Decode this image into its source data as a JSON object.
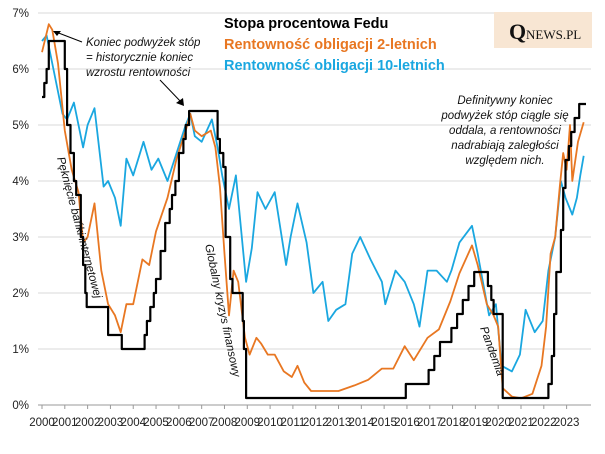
{
  "chart_data": {
    "type": "line",
    "title": "Stopa procentowa Fedu",
    "xlabel": "",
    "ylabel": "",
    "xlim": [
      2000,
      2023.85
    ],
    "ylim": [
      0,
      7
    ],
    "x_ticks": [
      "2000",
      "2001",
      "2002",
      "2003",
      "2004",
      "2005",
      "2006",
      "2007",
      "2008",
      "2009",
      "2010",
      "2011",
      "2012",
      "2013",
      "2014",
      "2015",
      "2016",
      "2017",
      "2018",
      "2019",
      "2020",
      "2021",
      "2022",
      "2023"
    ],
    "y_ticks": [
      "0%",
      "1%",
      "2%",
      "3%",
      "4%",
      "5%",
      "6%",
      "7%"
    ],
    "grid": "horizontal",
    "legend": {
      "placement": "top-center",
      "entries": [
        {
          "label": "Stopa procentowa Fedu",
          "color": "#000000"
        },
        {
          "label": "Rentowność obligacji  2-letnich",
          "color": "#e87722"
        },
        {
          "label": "Rentowność obligacji  10-letnich",
          "color": "#1aa7e0"
        }
      ]
    },
    "series": [
      {
        "name": "Stopa procentowa Fedu",
        "color": "#000000",
        "step": true,
        "points": [
          [
            2000.0,
            5.5
          ],
          [
            2000.1,
            5.75
          ],
          [
            2000.2,
            6.0
          ],
          [
            2000.3,
            6.5
          ],
          [
            2001.0,
            6.0
          ],
          [
            2001.1,
            5.0
          ],
          [
            2001.25,
            4.5
          ],
          [
            2001.4,
            4.0
          ],
          [
            2001.5,
            3.75
          ],
          [
            2001.7,
            3.0
          ],
          [
            2001.8,
            2.5
          ],
          [
            2001.9,
            2.0
          ],
          [
            2001.96,
            1.75
          ],
          [
            2002.9,
            1.25
          ],
          [
            2003.5,
            1.0
          ],
          [
            2004.5,
            1.25
          ],
          [
            2004.6,
            1.5
          ],
          [
            2004.75,
            1.75
          ],
          [
            2004.9,
            2.0
          ],
          [
            2005.0,
            2.25
          ],
          [
            2005.2,
            2.75
          ],
          [
            2005.4,
            3.25
          ],
          [
            2005.6,
            3.5
          ],
          [
            2005.7,
            3.75
          ],
          [
            2005.85,
            4.0
          ],
          [
            2006.0,
            4.5
          ],
          [
            2006.2,
            4.75
          ],
          [
            2006.3,
            5.0
          ],
          [
            2006.45,
            5.25
          ],
          [
            2007.7,
            4.75
          ],
          [
            2007.8,
            4.5
          ],
          [
            2007.95,
            4.25
          ],
          [
            2008.05,
            3.0
          ],
          [
            2008.25,
            2.25
          ],
          [
            2008.35,
            2.0
          ],
          [
            2008.8,
            1.5
          ],
          [
            2008.85,
            1.0
          ],
          [
            2008.95,
            0.125
          ],
          [
            2015.95,
            0.375
          ],
          [
            2016.95,
            0.625
          ],
          [
            2017.2,
            0.875
          ],
          [
            2017.45,
            1.125
          ],
          [
            2017.95,
            1.375
          ],
          [
            2018.2,
            1.625
          ],
          [
            2018.45,
            1.875
          ],
          [
            2018.7,
            2.125
          ],
          [
            2018.95,
            2.375
          ],
          [
            2019.55,
            2.125
          ],
          [
            2019.7,
            1.875
          ],
          [
            2019.8,
            1.625
          ],
          [
            2020.2,
            0.125
          ],
          [
            2022.2,
            0.375
          ],
          [
            2022.35,
            0.875
          ],
          [
            2022.45,
            1.625
          ],
          [
            2022.55,
            2.375
          ],
          [
            2022.75,
            3.125
          ],
          [
            2022.85,
            3.875
          ],
          [
            2022.95,
            4.375
          ],
          [
            2023.1,
            4.625
          ],
          [
            2023.2,
            4.875
          ],
          [
            2023.35,
            5.125
          ],
          [
            2023.55,
            5.375
          ],
          [
            2023.85,
            5.375
          ]
        ]
      },
      {
        "name": "Rentowność obligacji  2-letnich",
        "color": "#e87722",
        "points": [
          [
            2000.0,
            6.3
          ],
          [
            2000.3,
            6.8
          ],
          [
            2000.45,
            6.7
          ],
          [
            2000.7,
            6.1
          ],
          [
            2001.0,
            4.9
          ],
          [
            2001.3,
            4.2
          ],
          [
            2001.6,
            3.8
          ],
          [
            2001.8,
            2.9
          ],
          [
            2002.0,
            3.0
          ],
          [
            2002.3,
            3.6
          ],
          [
            2002.6,
            2.4
          ],
          [
            2002.9,
            1.8
          ],
          [
            2003.2,
            1.6
          ],
          [
            2003.45,
            1.3
          ],
          [
            2003.7,
            1.8
          ],
          [
            2004.0,
            1.8
          ],
          [
            2004.4,
            2.6
          ],
          [
            2004.7,
            2.5
          ],
          [
            2005.0,
            3.1
          ],
          [
            2005.5,
            3.7
          ],
          [
            2005.9,
            4.4
          ],
          [
            2006.3,
            4.9
          ],
          [
            2006.5,
            5.2
          ],
          [
            2006.7,
            4.9
          ],
          [
            2007.0,
            4.8
          ],
          [
            2007.4,
            4.9
          ],
          [
            2007.6,
            4.6
          ],
          [
            2007.8,
            3.9
          ],
          [
            2008.0,
            2.7
          ],
          [
            2008.2,
            1.6
          ],
          [
            2008.4,
            2.4
          ],
          [
            2008.6,
            2.2
          ],
          [
            2008.9,
            1.2
          ],
          [
            2009.1,
            0.9
          ],
          [
            2009.4,
            1.2
          ],
          [
            2009.6,
            1.1
          ],
          [
            2009.9,
            0.9
          ],
          [
            2010.2,
            0.9
          ],
          [
            2010.6,
            0.6
          ],
          [
            2010.95,
            0.5
          ],
          [
            2011.2,
            0.7
          ],
          [
            2011.5,
            0.4
          ],
          [
            2011.8,
            0.25
          ],
          [
            2012.5,
            0.25
          ],
          [
            2013.0,
            0.25
          ],
          [
            2013.7,
            0.35
          ],
          [
            2014.3,
            0.45
          ],
          [
            2014.9,
            0.65
          ],
          [
            2015.4,
            0.65
          ],
          [
            2015.9,
            1.05
          ],
          [
            2016.3,
            0.8
          ],
          [
            2016.9,
            1.2
          ],
          [
            2017.4,
            1.35
          ],
          [
            2017.9,
            1.85
          ],
          [
            2018.3,
            2.35
          ],
          [
            2018.85,
            2.85
          ],
          [
            2019.1,
            2.5
          ],
          [
            2019.5,
            1.8
          ],
          [
            2019.8,
            1.6
          ],
          [
            2020.0,
            1.4
          ],
          [
            2020.2,
            0.3
          ],
          [
            2020.6,
            0.15
          ],
          [
            2021.0,
            0.12
          ],
          [
            2021.5,
            0.2
          ],
          [
            2021.9,
            0.7
          ],
          [
            2022.1,
            1.4
          ],
          [
            2022.3,
            2.7
          ],
          [
            2022.5,
            3.0
          ],
          [
            2022.7,
            3.9
          ],
          [
            2022.85,
            4.5
          ],
          [
            2023.0,
            4.2
          ],
          [
            2023.15,
            5.0
          ],
          [
            2023.25,
            4.0
          ],
          [
            2023.5,
            4.7
          ],
          [
            2023.75,
            5.05
          ]
        ]
      },
      {
        "name": "Rentowność obligacji  10-letnich",
        "color": "#1aa7e0",
        "points": [
          [
            2000.0,
            6.5
          ],
          [
            2000.2,
            6.6
          ],
          [
            2000.5,
            6.0
          ],
          [
            2000.9,
            5.2
          ],
          [
            2001.1,
            5.1
          ],
          [
            2001.4,
            5.4
          ],
          [
            2001.8,
            4.6
          ],
          [
            2002.0,
            5.0
          ],
          [
            2002.3,
            5.3
          ],
          [
            2002.7,
            3.9
          ],
          [
            2002.9,
            4.0
          ],
          [
            2003.2,
            3.7
          ],
          [
            2003.45,
            3.2
          ],
          [
            2003.7,
            4.4
          ],
          [
            2004.0,
            4.1
          ],
          [
            2004.45,
            4.7
          ],
          [
            2004.8,
            4.2
          ],
          [
            2005.1,
            4.4
          ],
          [
            2005.5,
            4.0
          ],
          [
            2005.9,
            4.5
          ],
          [
            2006.3,
            5.0
          ],
          [
            2006.5,
            5.2
          ],
          [
            2006.7,
            4.8
          ],
          [
            2007.0,
            4.7
          ],
          [
            2007.45,
            5.1
          ],
          [
            2007.7,
            4.6
          ],
          [
            2007.9,
            4.1
          ],
          [
            2008.2,
            3.5
          ],
          [
            2008.5,
            4.1
          ],
          [
            2008.95,
            2.2
          ],
          [
            2009.2,
            2.8
          ],
          [
            2009.45,
            3.8
          ],
          [
            2009.8,
            3.5
          ],
          [
            2010.2,
            3.8
          ],
          [
            2010.7,
            2.5
          ],
          [
            2010.9,
            3.0
          ],
          [
            2011.2,
            3.6
          ],
          [
            2011.6,
            2.9
          ],
          [
            2011.9,
            2.0
          ],
          [
            2012.3,
            2.2
          ],
          [
            2012.55,
            1.5
          ],
          [
            2012.9,
            1.7
          ],
          [
            2013.3,
            1.8
          ],
          [
            2013.6,
            2.7
          ],
          [
            2013.95,
            3.0
          ],
          [
            2014.4,
            2.6
          ],
          [
            2014.9,
            2.2
          ],
          [
            2015.05,
            1.8
          ],
          [
            2015.5,
            2.4
          ],
          [
            2015.9,
            2.2
          ],
          [
            2016.3,
            1.8
          ],
          [
            2016.55,
            1.4
          ],
          [
            2016.9,
            2.4
          ],
          [
            2017.3,
            2.4
          ],
          [
            2017.75,
            2.2
          ],
          [
            2017.95,
            2.4
          ],
          [
            2018.3,
            2.9
          ],
          [
            2018.85,
            3.2
          ],
          [
            2019.1,
            2.7
          ],
          [
            2019.6,
            1.6
          ],
          [
            2019.9,
            1.8
          ],
          [
            2020.15,
            0.7
          ],
          [
            2020.6,
            0.6
          ],
          [
            2020.95,
            0.9
          ],
          [
            2021.2,
            1.7
          ],
          [
            2021.6,
            1.3
          ],
          [
            2021.95,
            1.5
          ],
          [
            2022.2,
            2.4
          ],
          [
            2022.5,
            3.0
          ],
          [
            2022.75,
            4.0
          ],
          [
            2022.95,
            3.7
          ],
          [
            2023.25,
            3.4
          ],
          [
            2023.45,
            3.7
          ],
          [
            2023.6,
            4.1
          ],
          [
            2023.75,
            4.45
          ]
        ]
      }
    ],
    "annotations": [
      {
        "id": "ann1",
        "lines": [
          "Koniec podwyżek stóp",
          "= historycznie koniec",
          "wzrostu rentowności"
        ]
      },
      {
        "id": "ann2",
        "lines": [
          "Definitywny koniec",
          "podwyżek stóp ciągle się",
          "oddala, a rentowności",
          "nadrabiają zaległości",
          "względem nich."
        ]
      },
      {
        "id": "ann3",
        "text": "Pęknięcie bańki internetowej"
      },
      {
        "id": "ann4",
        "text": "Globalny kryzys finansowy"
      },
      {
        "id": "ann5",
        "text": "Pandemia"
      }
    ]
  },
  "logo": {
    "q": "Q",
    "text": "NEWS.PL"
  }
}
